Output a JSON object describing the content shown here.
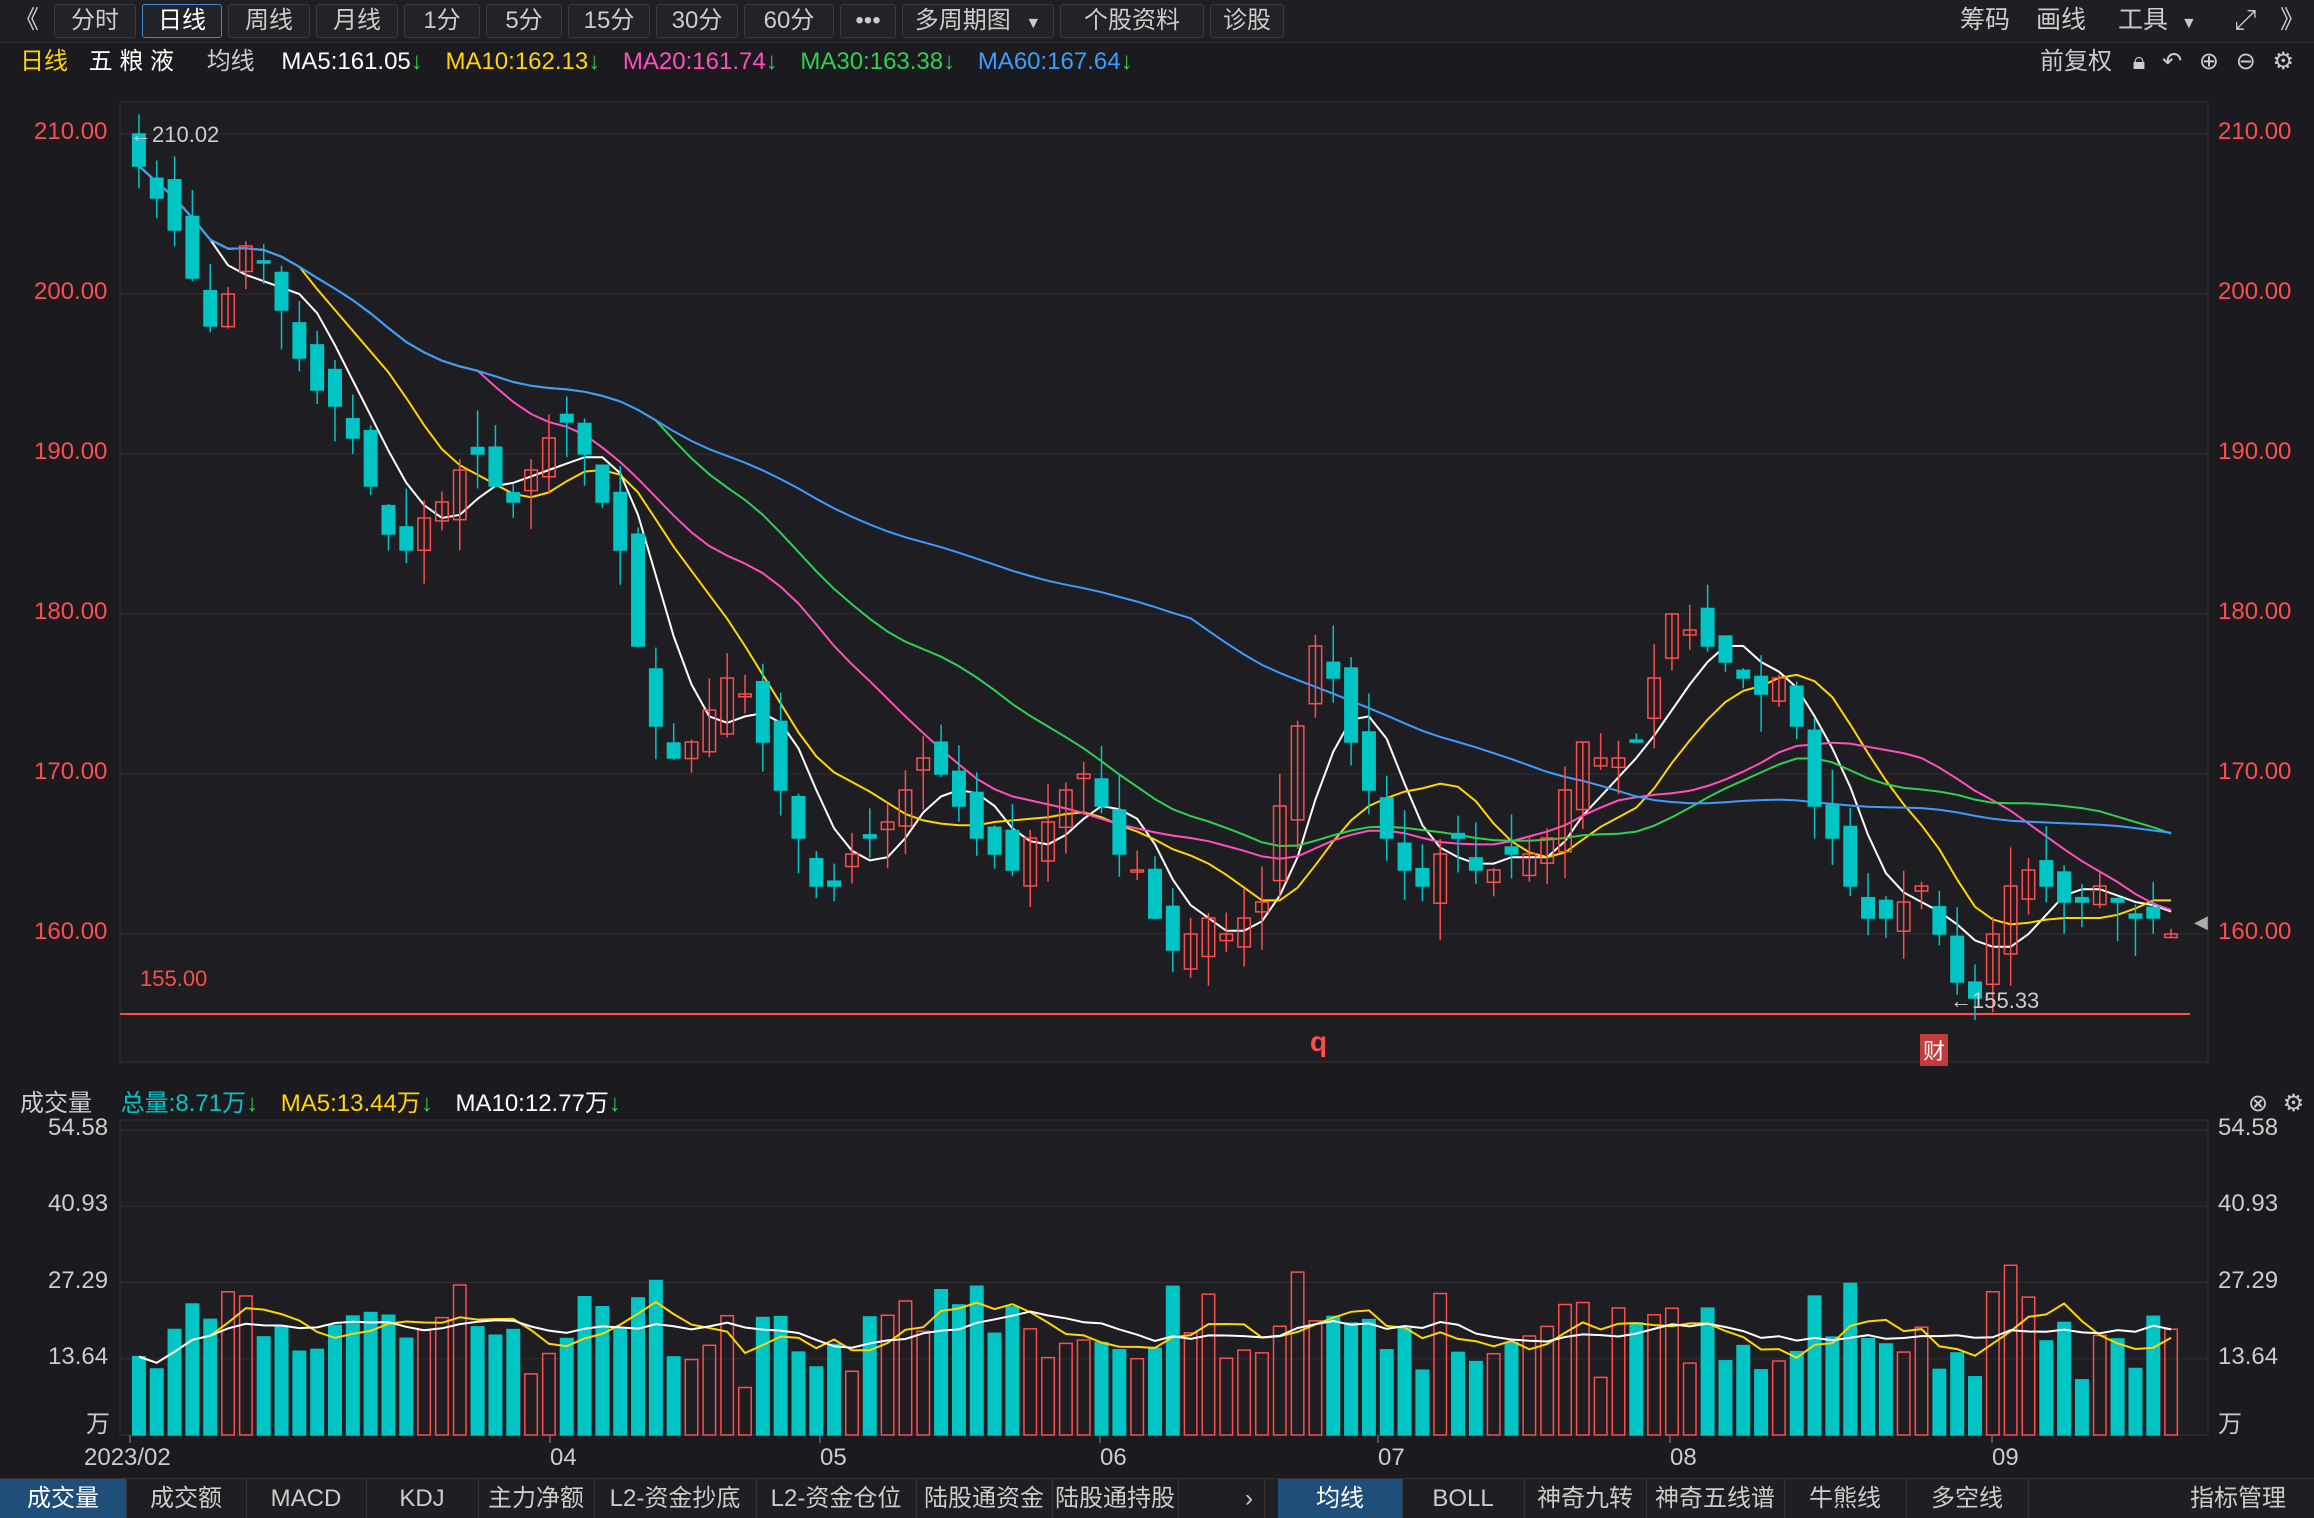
{
  "toolbar": {
    "back": "《",
    "periods": [
      "分时",
      "日线",
      "周线",
      "月线",
      "1分",
      "5分",
      "15分",
      "30分",
      "60分"
    ],
    "active_period": "日线",
    "more": "•••",
    "multi": "多周期图",
    "profile": "个股资料",
    "diagnose": "诊股",
    "right": [
      "筹码",
      "画线",
      "工具"
    ]
  },
  "legend": {
    "period": "日线",
    "name": "五 粮 液",
    "indicator": "均线",
    "ma5": "MA5:161.05",
    "ma10": "MA10:162.13",
    "ma20": "MA20:161.74",
    "ma30": "MA30:163.38",
    "ma60": "MA60:167.64",
    "arrow": "↓",
    "restore": "前复权"
  },
  "vol_legend": {
    "title": "成交量",
    "total": "总量:8.71万",
    "ma5": "MA5:13.44万",
    "ma10": "MA10:12.77万",
    "arrow": "↓"
  },
  "colors": {
    "up": "#ff4c4c",
    "down": "#00c5c5",
    "ma5": "#ffffff",
    "ma10": "#ffd400",
    "ma20": "#ff4fbf",
    "ma30": "#2fcf4f",
    "ma60": "#3d9cff"
  },
  "price_axis": [
    "210.00",
    "200.00",
    "190.00",
    "180.00",
    "170.00",
    "160.00"
  ],
  "volume_axis": [
    "54.58",
    "40.93",
    "27.29",
    "13.64"
  ],
  "volume_unit": "万",
  "date_axis": [
    "2023/02",
    "04",
    "05",
    "06",
    "07",
    "08",
    "09"
  ],
  "annotations": {
    "high": "←210.02",
    "low": "←155.33",
    "line_label": "155.00",
    "marker_q": "q",
    "marker_cai": "财"
  },
  "bottom_tabs_left": [
    "成交量",
    "成交额",
    "MACD",
    "KDJ",
    "主力净额",
    "L2-资金抄底",
    "L2-资金仓位",
    "陆股通资金",
    "陆股通持股"
  ],
  "bottom_tabs_right": [
    "均线",
    "BOLL",
    "神奇九转",
    "神奇五线谱",
    "牛熊线",
    "多空线"
  ],
  "bottom_active_left": "成交量",
  "bottom_active_right": "均线",
  "manage": "指标管理",
  "chart_data": {
    "type": "candlestick",
    "title": "五粮液 日线",
    "ylim": [
      152,
      212
    ],
    "closes": [
      208,
      206,
      204,
      201,
      198,
      200,
      203,
      202,
      199,
      196,
      194,
      193,
      191,
      188,
      185,
      184,
      186,
      187,
      189,
      190,
      188,
      187,
      189,
      191,
      192,
      190,
      187,
      184,
      178,
      173,
      171,
      172,
      174,
      176,
      175,
      172,
      169,
      166,
      163,
      163,
      165,
      166,
      167,
      169,
      171,
      170,
      168,
      166,
      165,
      164,
      166,
      167,
      169,
      170,
      168,
      165,
      164,
      161,
      159,
      160,
      161,
      160,
      161,
      162,
      168,
      173,
      178,
      176,
      172,
      169,
      166,
      164,
      163,
      165,
      166,
      164,
      164,
      165,
      165,
      166,
      169,
      172,
      171,
      171,
      172,
      176,
      180,
      179,
      178,
      177,
      176,
      175,
      176,
      173,
      168,
      166,
      163,
      161,
      161,
      162,
      163,
      160,
      157,
      156,
      160,
      163,
      164,
      163,
      162,
      162,
      163,
      162,
      161,
      161,
      160
    ],
    "volume_ylim": [
      0,
      54.58
    ]
  }
}
